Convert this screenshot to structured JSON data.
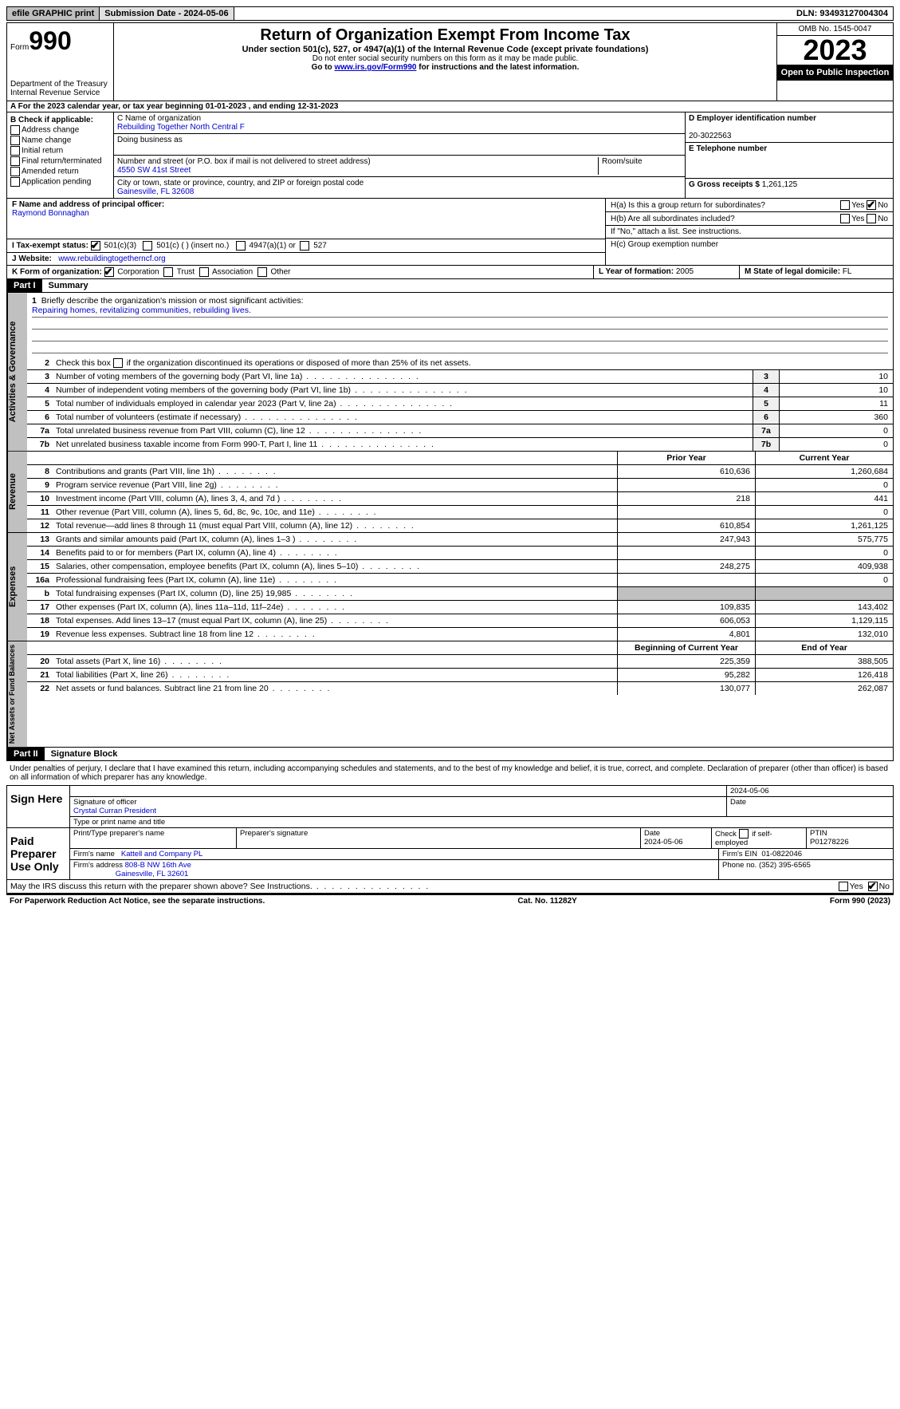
{
  "topbar": {
    "efile": "efile GRAPHIC print",
    "submission": "Submission Date - 2024-05-06",
    "dln": "DLN: 93493127004304"
  },
  "header": {
    "form_prefix": "Form",
    "form_num": "990",
    "dept": "Department of the Treasury Internal Revenue Service",
    "title": "Return of Organization Exempt From Income Tax",
    "sub": "Under section 501(c), 527, or 4947(a)(1) of the Internal Revenue Code (except private foundations)",
    "note1": "Do not enter social security numbers on this form as it may be made public.",
    "note2_pre": "Go to ",
    "note2_link": "www.irs.gov/Form990",
    "note2_post": " for instructions and the latest information.",
    "omb": "OMB No. 1545-0047",
    "year": "2023",
    "open": "Open to Public Inspection"
  },
  "section_a": "A  For the 2023 calendar year, or tax year beginning 01-01-2023    , and ending 12-31-2023",
  "box_b": {
    "hdr": "B Check if applicable:",
    "items": [
      "Address change",
      "Name change",
      "Initial return",
      "Final return/terminated",
      "Amended return",
      "Application pending"
    ]
  },
  "box_c": {
    "name_lbl": "C Name of organization",
    "name": "Rebuilding Together North Central F",
    "dba_lbl": "Doing business as",
    "addr_lbl": "Number and street (or P.O. box if mail is not delivered to street address)",
    "addr": "4550 SW 41st Street",
    "room_lbl": "Room/suite",
    "city_lbl": "City or town, state or province, country, and ZIP or foreign postal code",
    "city": "Gainesville, FL  32608"
  },
  "box_d": {
    "ein_lbl": "D Employer identification number",
    "ein": "20-3022563",
    "tel_lbl": "E Telephone number",
    "gross_lbl": "G Gross receipts $ ",
    "gross": "1,261,125"
  },
  "box_f": {
    "lbl": "F  Name and address of principal officer:",
    "name": "Raymond Bonnaghan"
  },
  "box_h": {
    "a": "H(a)  Is this a group return for subordinates?",
    "b": "H(b)  Are all subordinates included?",
    "note": "If \"No,\" attach a list. See instructions.",
    "c": "H(c)  Group exemption number"
  },
  "box_i": {
    "lbl": "I   Tax-exempt status:",
    "o1": "501(c)(3)",
    "o2": "501(c) (  ) (insert no.)",
    "o3": "4947(a)(1) or",
    "o4": "527"
  },
  "box_j": {
    "lbl": "J   Website:",
    "val": "www.rebuildingtogetherncf.org"
  },
  "box_k": {
    "lbl": "K Form of organization:",
    "o1": "Corporation",
    "o2": "Trust",
    "o3": "Association",
    "o4": "Other"
  },
  "box_l": {
    "lbl": "L Year of formation: ",
    "val": "2005"
  },
  "box_m": {
    "lbl": "M State of legal domicile: ",
    "val": "FL"
  },
  "part1": {
    "hdr": "Part I",
    "title": "Summary"
  },
  "summary": {
    "q1": "Briefly describe the organization's mission or most significant activities:",
    "mission": "Repairing homes, revitalizing communities, rebuilding lives.",
    "q2": "Check this box        if the organization discontinued its operations or disposed of more than 25% of its net assets.",
    "rows_gov": [
      {
        "n": "3",
        "d": "Number of voting members of the governing body (Part VI, line 1a)",
        "v": "10"
      },
      {
        "n": "4",
        "d": "Number of independent voting members of the governing body (Part VI, line 1b)",
        "v": "10"
      },
      {
        "n": "5",
        "d": "Total number of individuals employed in calendar year 2023 (Part V, line 2a)",
        "v": "11"
      },
      {
        "n": "6",
        "d": "Total number of volunteers (estimate if necessary)",
        "v": "360"
      },
      {
        "n": "7a",
        "d": "Total unrelated business revenue from Part VIII, column (C), line 12",
        "v": "0"
      },
      {
        "n": "7b",
        "d": "Net unrelated business taxable income from Form 990-T, Part I, line 11",
        "v": "0"
      }
    ],
    "hdr_prior": "Prior Year",
    "hdr_curr": "Current Year",
    "rev": [
      {
        "n": "8",
        "d": "Contributions and grants (Part VIII, line 1h)",
        "p": "610,636",
        "c": "1,260,684"
      },
      {
        "n": "9",
        "d": "Program service revenue (Part VIII, line 2g)",
        "p": "",
        "c": "0"
      },
      {
        "n": "10",
        "d": "Investment income (Part VIII, column (A), lines 3, 4, and 7d )",
        "p": "218",
        "c": "441"
      },
      {
        "n": "11",
        "d": "Other revenue (Part VIII, column (A), lines 5, 6d, 8c, 9c, 10c, and 11e)",
        "p": "",
        "c": "0"
      },
      {
        "n": "12",
        "d": "Total revenue—add lines 8 through 11 (must equal Part VIII, column (A), line 12)",
        "p": "610,854",
        "c": "1,261,125"
      }
    ],
    "exp": [
      {
        "n": "13",
        "d": "Grants and similar amounts paid (Part IX, column (A), lines 1–3 )",
        "p": "247,943",
        "c": "575,775"
      },
      {
        "n": "14",
        "d": "Benefits paid to or for members (Part IX, column (A), line 4)",
        "p": "",
        "c": "0"
      },
      {
        "n": "15",
        "d": "Salaries, other compensation, employee benefits (Part IX, column (A), lines 5–10)",
        "p": "248,275",
        "c": "409,938"
      },
      {
        "n": "16a",
        "d": "Professional fundraising fees (Part IX, column (A), line 11e)",
        "p": "",
        "c": "0"
      },
      {
        "n": "b",
        "d": "Total fundraising expenses (Part IX, column (D), line 25) 19,985",
        "p": "shaded",
        "c": "shaded"
      },
      {
        "n": "17",
        "d": "Other expenses (Part IX, column (A), lines 11a–11d, 11f–24e)",
        "p": "109,835",
        "c": "143,402"
      },
      {
        "n": "18",
        "d": "Total expenses. Add lines 13–17 (must equal Part IX, column (A), line 25)",
        "p": "606,053",
        "c": "1,129,115"
      },
      {
        "n": "19",
        "d": "Revenue less expenses. Subtract line 18 from line 12",
        "p": "4,801",
        "c": "132,010"
      }
    ],
    "hdr_beg": "Beginning of Current Year",
    "hdr_end": "End of Year",
    "net": [
      {
        "n": "20",
        "d": "Total assets (Part X, line 16)",
        "p": "225,359",
        "c": "388,505"
      },
      {
        "n": "21",
        "d": "Total liabilities (Part X, line 26)",
        "p": "95,282",
        "c": "126,418"
      },
      {
        "n": "22",
        "d": "Net assets or fund balances. Subtract line 21 from line 20",
        "p": "130,077",
        "c": "262,087"
      }
    ]
  },
  "part2": {
    "hdr": "Part II",
    "title": "Signature Block"
  },
  "sig": {
    "decl": "Under penalties of perjury, I declare that I have examined this return, including accompanying schedules and statements, and to the best of my knowledge and belief, it is true, correct, and complete. Declaration of preparer (other than officer) is based on all information of which preparer has any knowledge.",
    "sign_here": "Sign Here",
    "sig_officer": "Signature of officer",
    "officer": "Crystal Curran President",
    "type_name": "Type or print name and title",
    "date": "Date",
    "date_val": "2024-05-06",
    "paid": "Paid Preparer Use Only",
    "prep_name_lbl": "Print/Type preparer's name",
    "prep_sig_lbl": "Preparer's signature",
    "prep_date": "2024-05-06",
    "self_emp": "Check        if self-employed",
    "ptin_lbl": "PTIN",
    "ptin": "P01278226",
    "firm_name_lbl": "Firm's name",
    "firm_name": "Kattell and Company PL",
    "firm_ein_lbl": "Firm's EIN",
    "firm_ein": "01-0822046",
    "firm_addr_lbl": "Firm's address",
    "firm_addr": "808-B NW 16th Ave",
    "firm_city": "Gainesville, FL  32601",
    "phone_lbl": "Phone no.",
    "phone": "(352) 395-6565"
  },
  "discuss": "May the IRS discuss this return with the preparer shown above? See Instructions.",
  "footer": {
    "left": "For Paperwork Reduction Act Notice, see the separate instructions.",
    "mid": "Cat. No. 11282Y",
    "right": "Form 990 (2023)"
  },
  "yesno": {
    "yes": "Yes",
    "no": "No"
  }
}
